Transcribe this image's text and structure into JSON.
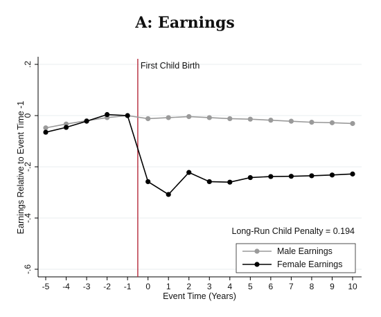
{
  "chart_data": {
    "type": "line",
    "title": "A: Earnings",
    "xlabel": "Event Time (Years)",
    "ylabel": "Earnings Relative to Event Time -1",
    "x": [
      -5,
      -4,
      -3,
      -2,
      -1,
      0,
      1,
      2,
      3,
      4,
      5,
      6,
      7,
      8,
      9,
      10
    ],
    "xlim": [
      -5,
      10
    ],
    "ylim": [
      -0.6,
      0.2
    ],
    "x_ticks": [
      "-5",
      "-4",
      "-3",
      "-2",
      "-1",
      "0",
      "1",
      "2",
      "3",
      "4",
      "5",
      "6",
      "7",
      "8",
      "9",
      "10"
    ],
    "y_ticks": [
      {
        "value": 0.2,
        "label": ".2"
      },
      {
        "value": 0,
        "label": "0"
      },
      {
        "value": -0.2,
        "label": "-.2"
      },
      {
        "value": -0.4,
        "label": "-.4"
      },
      {
        "value": -0.6,
        "label": "-.6"
      }
    ],
    "grid": true,
    "series": [
      {
        "name": "Male Earnings",
        "color": "#9a9a9a",
        "values": [
          -0.048,
          -0.033,
          -0.02,
          -0.008,
          0.0,
          -0.012,
          -0.008,
          -0.004,
          -0.008,
          -0.012,
          -0.014,
          -0.018,
          -0.022,
          -0.026,
          -0.028,
          -0.031
        ]
      },
      {
        "name": "Female Earnings",
        "color": "#000000",
        "values": [
          -0.065,
          -0.046,
          -0.022,
          0.004,
          0.0,
          -0.258,
          -0.308,
          -0.222,
          -0.258,
          -0.26,
          -0.242,
          -0.238,
          -0.237,
          -0.235,
          -0.232,
          -0.228
        ]
      }
    ],
    "event_line": {
      "x": -0.5,
      "label": "First Child Birth",
      "color": "#b5283a"
    },
    "annotation": "Long-Run Child Penalty = 0.194",
    "legend_position": "bottom-right"
  }
}
